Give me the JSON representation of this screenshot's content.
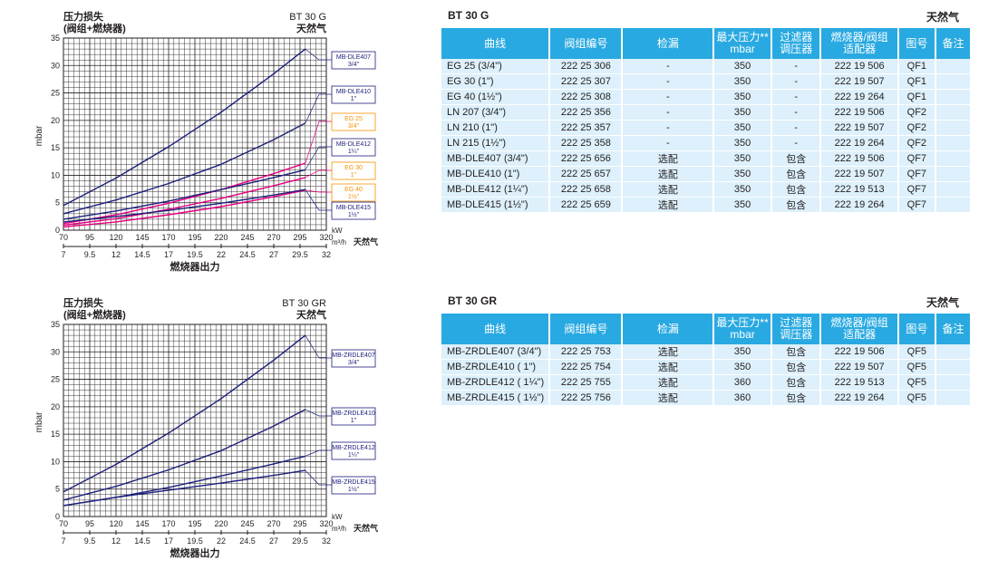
{
  "colors": {
    "grid": "#231f20",
    "blue_curve": "#1b1f7a",
    "pink_curve": "#e6007e",
    "orange_label": "#f39200",
    "header_bg": "#29a9e1",
    "row_bg": "#ddf0fb"
  },
  "chart_data": [
    {
      "type": "line",
      "title_line1": "压力损失",
      "title_line2": "(阀组+燃烧器)",
      "model": "BT 30 G",
      "gas": "天然气",
      "ylabel": "mbar",
      "xlabel": "燃烧器出力",
      "x_unit_kw": "kW",
      "x_unit_m3h": "m³/h",
      "x_gas": "天然气",
      "ylim": [
        0,
        35
      ],
      "xlim_kw": [
        70,
        320
      ],
      "y_ticks": [
        "0",
        "5",
        "10",
        "15",
        "20",
        "25",
        "30",
        "35"
      ],
      "x_ticks_kw": [
        "70",
        "95",
        "120",
        "145",
        "170",
        "195",
        "220",
        "245",
        "270",
        "295",
        "320"
      ],
      "x_ticks_m3h": [
        "7",
        "9.5",
        "12",
        "14.5",
        "17",
        "19.5",
        "22",
        "24.5",
        "27",
        "29.5",
        "32"
      ],
      "series": [
        {
          "name": "MB-DLE407",
          "label_size": "3/4\"",
          "color": "#1b1f7a",
          "x": [
            70,
            120,
            170,
            220,
            270,
            300
          ],
          "y": [
            4.5,
            9.5,
            15.2,
            21.5,
            28.5,
            33
          ]
        },
        {
          "name": "MB-DLE410",
          "label_size": "1\"",
          "color": "#1b1f7a",
          "x": [
            70,
            120,
            170,
            220,
            270,
            300
          ],
          "y": [
            3,
            5.5,
            8.5,
            12,
            16.5,
            19.5
          ]
        },
        {
          "name": "EG 25",
          "label_size": "3/4\"",
          "color": "#e6007e",
          "x": [
            70,
            120,
            170,
            220,
            270,
            300
          ],
          "y": [
            1.2,
            2.8,
            4.9,
            7.4,
            10.3,
            12.2
          ]
        },
        {
          "name": "MB-DLE412",
          "label_size": "1¼\"",
          "color": "#1b1f7a",
          "x": [
            70,
            120,
            170,
            220,
            270,
            300
          ],
          "y": [
            2,
            3.5,
            5.3,
            7.4,
            9.6,
            11
          ]
        },
        {
          "name": "EG 30",
          "label_size": "1\"",
          "color": "#e6007e",
          "x": [
            70,
            120,
            170,
            220,
            270,
            300
          ],
          "y": [
            0.9,
            2.1,
            3.8,
            5.8,
            8.1,
            9.6
          ]
        },
        {
          "name": "EG 40",
          "label_size": "1½\"",
          "color": "#e6007e",
          "x": [
            70,
            120,
            170,
            220,
            270,
            300
          ],
          "y": [
            0.6,
            1.5,
            2.8,
            4.3,
            6.1,
            7.3
          ]
        },
        {
          "name": "MB-DLE415",
          "label_size": "1½\"",
          "color": "#1b1f7a",
          "x": [
            70,
            120,
            170,
            220,
            270,
            300
          ],
          "y": [
            1.5,
            2.5,
            3.6,
            4.9,
            6.4,
            7.4
          ]
        }
      ]
    },
    {
      "type": "line",
      "title_line1": "压力损失",
      "title_line2": "(阀组+燃烧器)",
      "model": "BT 30 GR",
      "gas": "天然气",
      "ylabel": "mbar",
      "xlabel": "燃烧器出力",
      "x_unit_kw": "kW",
      "x_unit_m3h": "m³/h",
      "x_gas": "天然气",
      "ylim": [
        0,
        35
      ],
      "xlim_kw": [
        70,
        320
      ],
      "y_ticks": [
        "0",
        "5",
        "10",
        "15",
        "20",
        "25",
        "30",
        "35"
      ],
      "x_ticks_kw": [
        "70",
        "95",
        "120",
        "145",
        "170",
        "195",
        "220",
        "245",
        "270",
        "295",
        "320"
      ],
      "x_ticks_m3h": [
        "7",
        "9.5",
        "12",
        "14.5",
        "17",
        "19.5",
        "22",
        "24.5",
        "27",
        "29.5",
        "32"
      ],
      "series": [
        {
          "name": "MB-ZRDLE407",
          "label_size": "3/4\"",
          "color": "#1b1f7a",
          "x": [
            70,
            120,
            170,
            220,
            270,
            300
          ],
          "y": [
            4.5,
            9.5,
            15.2,
            21.5,
            28.5,
            33
          ]
        },
        {
          "name": "MB-ZRDLE410",
          "label_size": "1\"",
          "color": "#1b1f7a",
          "x": [
            70,
            120,
            170,
            220,
            270,
            300
          ],
          "y": [
            3,
            5.5,
            8.5,
            12,
            16.5,
            19.5
          ]
        },
        {
          "name": "MB-ZRDLE412",
          "label_size": "1¼\"",
          "color": "#1b1f7a",
          "x": [
            70,
            120,
            170,
            220,
            270,
            300
          ],
          "y": [
            2,
            3.5,
            5.3,
            7.4,
            9.6,
            11
          ]
        },
        {
          "name": "MB-ZRDLE415",
          "label_size": "1½\"",
          "color": "#1b1f7a",
          "x": [
            70,
            120,
            170,
            220,
            270,
            300
          ],
          "y": [
            2,
            3.5,
            4.8,
            6.1,
            7.5,
            8.4
          ]
        }
      ]
    }
  ],
  "tables": [
    {
      "model": "BT 30 G",
      "gas": "天然气",
      "headers": [
        "曲线",
        "阀组编号",
        "检漏",
        "最大压力** mbar",
        "过滤器 调压器",
        "燃烧器/阀组 适配器",
        "图号",
        "备注"
      ],
      "rows": [
        [
          "EG 25   (3/4\")",
          "222 25 306",
          "-",
          "350",
          "-",
          "222 19 506",
          "QF1",
          ""
        ],
        [
          "EG 30   (1\")",
          "222 25 307",
          "-",
          "350",
          "-",
          "222 19 507",
          "QF1",
          ""
        ],
        [
          "EG 40   (1½\")",
          "222 25 308",
          "-",
          "350",
          "-",
          "222 19 264",
          "QF1",
          ""
        ],
        [
          "LN 207   (3/4\")",
          "222 25 356",
          "-",
          "350",
          "-",
          "222 19 506",
          "QF2",
          ""
        ],
        [
          "LN 210   (1\")",
          "222 25 357",
          "-",
          "350",
          "-",
          "222 19 507",
          "QF2",
          ""
        ],
        [
          "LN 215   (1½\")",
          "222 25 358",
          "-",
          "350",
          "-",
          "222 19 264",
          "QF2",
          ""
        ],
        [
          "MB-DLE407   (3/4\")",
          "222 25 656",
          "选配",
          "350",
          "包含",
          "222 19 506",
          "QF7",
          ""
        ],
        [
          "MB-DLE410   (1\")",
          "222 25 657",
          "选配",
          "350",
          "包含",
          "222 19 507",
          "QF7",
          ""
        ],
        [
          "MB-DLE412   (1¼\")",
          "222 25 658",
          "选配",
          "350",
          "包含",
          "222 19 513",
          "QF7",
          ""
        ],
        [
          "MB-DLE415   (1½\")",
          "222 25 659",
          "选配",
          "350",
          "包含",
          "222 19 264",
          "QF7",
          ""
        ]
      ]
    },
    {
      "model": "BT 30 GR",
      "gas": "天然气",
      "headers": [
        "曲线",
        "阀组编号",
        "检漏",
        "最大压力** mbar",
        "过滤器 调压器",
        "燃烧器/阀组 适配器",
        "图号",
        "备注"
      ],
      "rows": [
        [
          "MB-ZRDLE407 (3/4\")",
          "222 25 753",
          "选配",
          "350",
          "包含",
          "222 19 506",
          "QF5",
          ""
        ],
        [
          "MB-ZRDLE410 ( 1\")",
          "222 25 754",
          "选配",
          "350",
          "包含",
          "222 19 507",
          "QF5",
          ""
        ],
        [
          "MB-ZRDLE412 ( 1¼\")",
          "222 25 755",
          "选配",
          "360",
          "包含",
          "222 19 513",
          "QF5",
          ""
        ],
        [
          "MB-ZRDLE415 ( 1½\")",
          "222 25 756",
          "选配",
          "360",
          "包含",
          "222 19 264",
          "QF5",
          ""
        ]
      ]
    }
  ]
}
